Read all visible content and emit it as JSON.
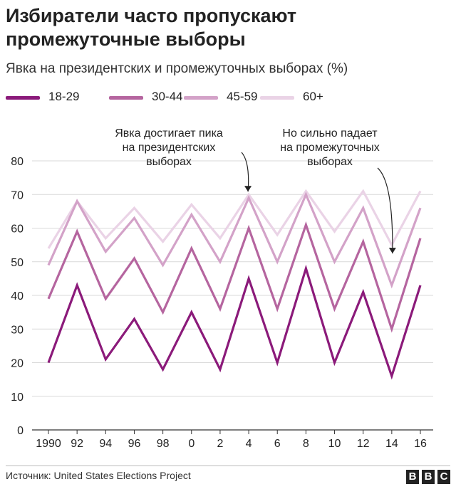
{
  "title": "Избиратели часто пропускают промежуточные выборы",
  "subtitle": "Явка на президентских и промежуточных выборах (%)",
  "source": "Источник: United States Elections Project",
  "logo": [
    "B",
    "B",
    "C"
  ],
  "colors": {
    "18-29": "#8b1a7a",
    "30-44": "#b5659f",
    "45-59": "#d3a2c8",
    "60+": "#ead3e6",
    "grid": "#d9d9d9",
    "text": "#222222"
  },
  "chart_data": {
    "type": "line",
    "categories": [
      "1990",
      "92",
      "94",
      "96",
      "98",
      "0",
      "2",
      "4",
      "6",
      "8",
      "10",
      "12",
      "14",
      "16"
    ],
    "ylim": [
      0,
      80
    ],
    "yticks": [
      0,
      10,
      20,
      30,
      40,
      50,
      60,
      70,
      80
    ],
    "grid": true,
    "legend_position": "top-left",
    "series": [
      {
        "name": "18-29",
        "values": [
          20,
          43,
          21,
          33,
          18,
          35,
          18,
          45,
          20,
          48,
          20,
          41,
          16,
          43
        ]
      },
      {
        "name": "30-44",
        "values": [
          39,
          59,
          39,
          51,
          35,
          54,
          36,
          60,
          36,
          61,
          36,
          56,
          30,
          57
        ]
      },
      {
        "name": "45-59",
        "values": [
          49,
          68,
          53,
          63,
          49,
          64,
          50,
          69,
          50,
          70,
          50,
          66,
          43,
          66
        ]
      },
      {
        "name": "60+",
        "values": [
          54,
          68,
          57,
          66,
          56,
          67,
          57,
          70,
          58,
          71,
          59,
          71,
          55,
          71
        ]
      }
    ],
    "annotations": [
      {
        "text": [
          "Явка достигает пика",
          "на президентских",
          "выборах"
        ],
        "target_category": "4"
      },
      {
        "text": [
          "Но сильно падает",
          "на промежуточных",
          "выборах"
        ],
        "target_category": "14"
      }
    ]
  }
}
